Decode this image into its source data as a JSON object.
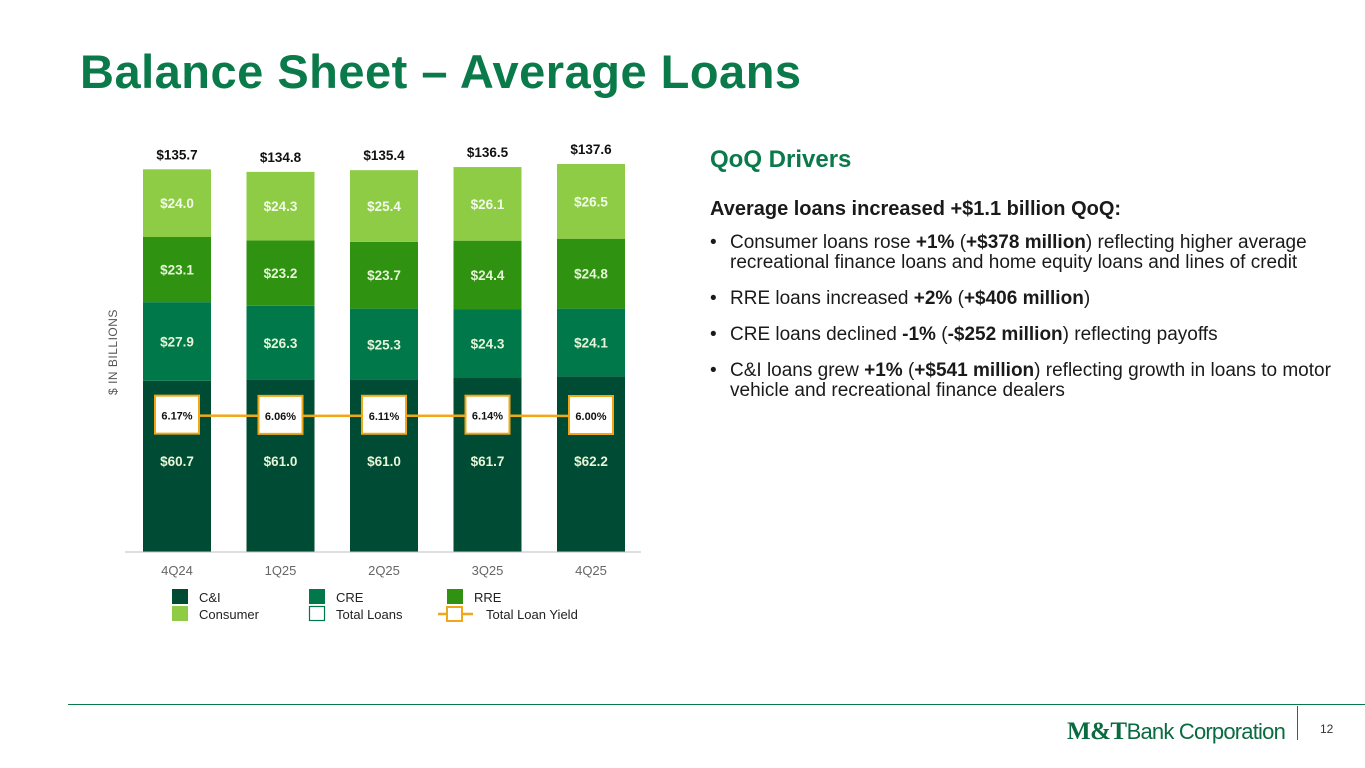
{
  "slide": {
    "title": "Balance Sheet – Average Loans",
    "page_number": "12"
  },
  "logo": {
    "part1": "M&T",
    "part2": "Bank Corporation"
  },
  "right": {
    "heading": "QoQ Drivers",
    "headline": "Average loans increased +$1.1 billion QoQ:",
    "bullet_char": "•",
    "bullets": [
      [
        {
          "t": "Consumer loans rose ",
          "b": false
        },
        {
          "t": "+1%",
          "b": true
        },
        {
          "t": " (",
          "b": false
        },
        {
          "t": "+$378 million",
          "b": true
        },
        {
          "t": ") reflecting higher average recreational finance loans and home equity loans and lines of credit",
          "b": false
        }
      ],
      [
        {
          "t": "RRE loans increased ",
          "b": false
        },
        {
          "t": "+2%",
          "b": true
        },
        {
          "t": " (",
          "b": false
        },
        {
          "t": "+$406 million",
          "b": true
        },
        {
          "t": ")",
          "b": false
        }
      ],
      [
        {
          "t": "CRE loans declined ",
          "b": false
        },
        {
          "t": "-1%",
          "b": true
        },
        {
          "t": " (",
          "b": false
        },
        {
          "t": "-$252 million",
          "b": true
        },
        {
          "t": ") reflecting payoffs",
          "b": false
        }
      ],
      [
        {
          "t": "C&I loans grew ",
          "b": false
        },
        {
          "t": "+1%",
          "b": true
        },
        {
          "t": " (",
          "b": false
        },
        {
          "t": "+$541 million",
          "b": true
        },
        {
          "t": ") reflecting growth in loans to motor vehicle and recreational finance dealers",
          "b": false
        }
      ]
    ]
  },
  "chart_data": {
    "type": "bar",
    "stacked": true,
    "ylabel": "$ IN BILLIONS",
    "categories": [
      "4Q24",
      "1Q25",
      "2Q25",
      "3Q25",
      "4Q25"
    ],
    "series": [
      {
        "name": "C&I",
        "color": "#004b33",
        "values": [
          60.7,
          61.0,
          61.0,
          61.7,
          62.2
        ],
        "labels": [
          "$60.7",
          "$61.0",
          "$61.0",
          "$61.7",
          "$62.2"
        ]
      },
      {
        "name": "CRE",
        "color": "#00784a",
        "values": [
          27.9,
          26.3,
          25.3,
          24.3,
          24.1
        ],
        "labels": [
          "$27.9",
          "$26.3",
          "$25.3",
          "$24.3",
          "$24.1"
        ]
      },
      {
        "name": "RRE",
        "color": "#2f9210",
        "values": [
          23.1,
          23.2,
          23.7,
          24.4,
          24.8
        ],
        "labels": [
          "$23.1",
          "$23.2",
          "$23.7",
          "$24.4",
          "$24.8"
        ]
      },
      {
        "name": "Consumer",
        "color": "#8dcc44",
        "values": [
          24.0,
          24.3,
          25.4,
          26.1,
          26.5
        ],
        "labels": [
          "$24.0",
          "$24.3",
          "$25.4",
          "$26.1",
          "$26.5"
        ]
      }
    ],
    "totals": {
      "name": "Total Loans",
      "values": [
        135.7,
        134.8,
        135.4,
        136.5,
        137.6
      ],
      "labels": [
        "$135.7",
        "$134.8",
        "$135.4",
        "$136.5",
        "$137.6"
      ]
    },
    "line": {
      "name": "Total Loan Yield",
      "color": "#f0a818",
      "values": [
        6.17,
        6.06,
        6.11,
        6.14,
        6.0
      ],
      "labels": [
        "6.17%",
        "6.06%",
        "6.11%",
        "6.14%",
        "6.00%"
      ]
    },
    "ylim": [
      0,
      140
    ],
    "grid": false,
    "legend_position": "bottom",
    "legend": [
      [
        {
          "key": "C&I",
          "kind": "square",
          "color": "#004b33"
        },
        {
          "key": "CRE",
          "kind": "square",
          "color": "#00784a"
        },
        {
          "key": "RRE",
          "kind": "square",
          "color": "#2f9210"
        }
      ],
      [
        {
          "key": "Consumer",
          "kind": "square",
          "color": "#8dcc44"
        },
        {
          "key": "Total Loans",
          "kind": "outline",
          "color": "#00784a"
        },
        {
          "key": "Total Loan Yield",
          "kind": "line",
          "color": "#f0a818"
        }
      ]
    ]
  }
}
